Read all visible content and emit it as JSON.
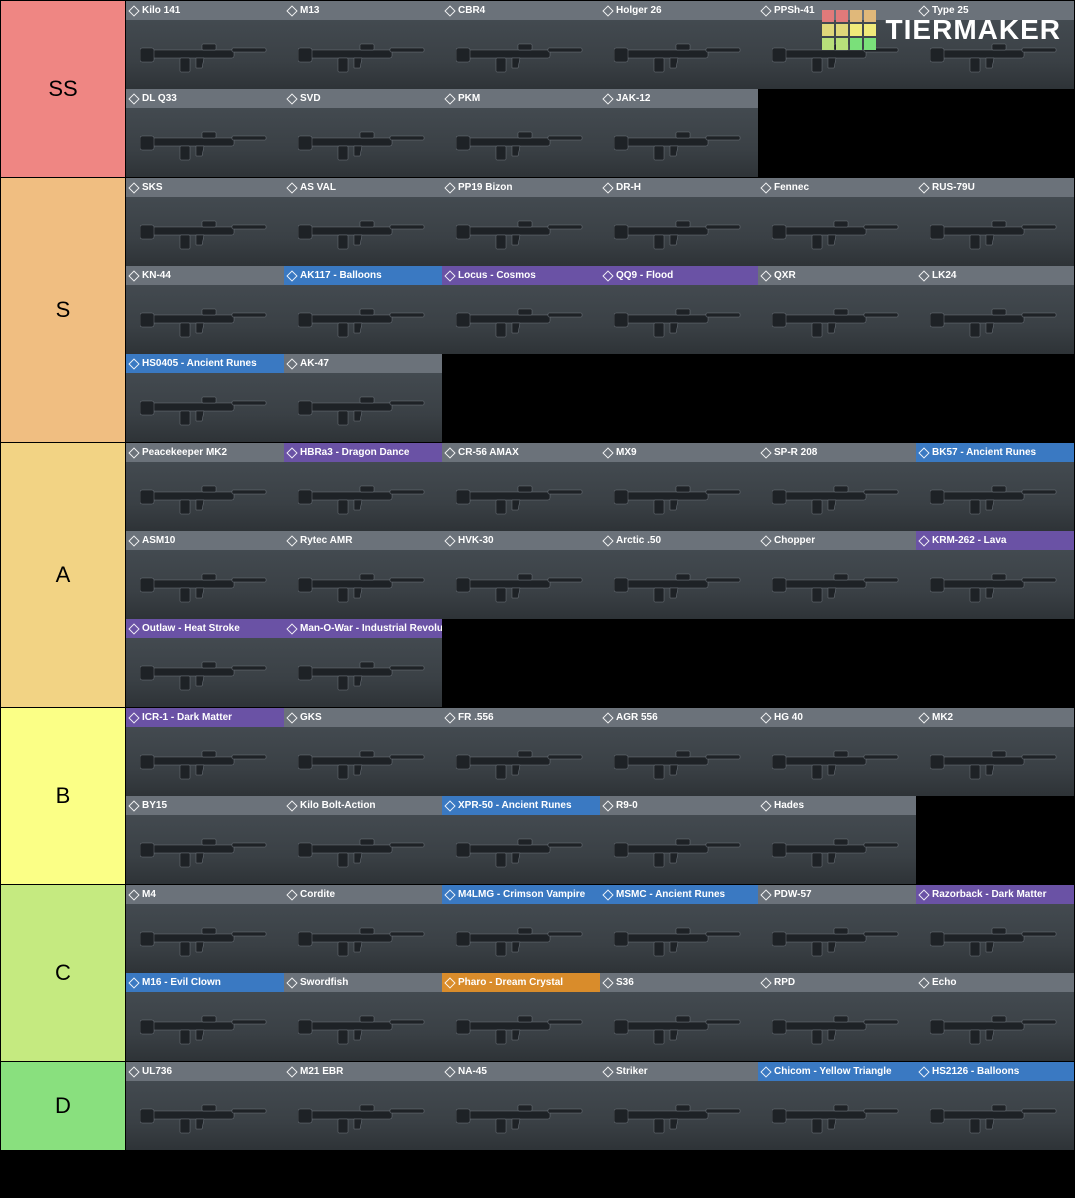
{
  "watermark": {
    "text": "TIERMAKER",
    "text_color": "#ffffff",
    "grid_colors": [
      "#e07a7a",
      "#e07a7a",
      "#e0b87a",
      "#e0b87a",
      "#e0d77a",
      "#e0d77a",
      "#f0ea7a",
      "#f0ea7a",
      "#b8e07a",
      "#b8e07a",
      "#7ae07a",
      "#7ae07a"
    ]
  },
  "rarity_colors": {
    "default": "#6b727a",
    "blue": "#3a79c2",
    "purple": "#6a52a5",
    "orange": "#d98c2b"
  },
  "item_body_gradient": [
    "#434a50",
    "#3a4045",
    "#2e3337"
  ],
  "tier_label_fontsize": 22,
  "item_header_fontsize": 10,
  "item_width": 158,
  "item_height": 88,
  "label_width": 125,
  "weapon_silhouette_color": "#1e2226",
  "weapon_highlight_color": "#808891",
  "tiers": [
    {
      "key": "ss",
      "label": "SS",
      "color": "#ef8683",
      "items": [
        {
          "name": "Kilo 141",
          "rarity": "default"
        },
        {
          "name": "M13",
          "rarity": "default"
        },
        {
          "name": "CBR4",
          "rarity": "default"
        },
        {
          "name": "Holger 26",
          "rarity": "default"
        },
        {
          "name": "PPSh-41",
          "rarity": "default"
        },
        {
          "name": "Type 25",
          "rarity": "default"
        },
        {
          "name": "DL Q33",
          "rarity": "default"
        },
        {
          "name": "SVD",
          "rarity": "default"
        },
        {
          "name": "PKM",
          "rarity": "default"
        },
        {
          "name": "JAK-12",
          "rarity": "default"
        }
      ]
    },
    {
      "key": "s",
      "label": "S",
      "color": "#f0be81",
      "items": [
        {
          "name": "SKS",
          "rarity": "default"
        },
        {
          "name": "AS VAL",
          "rarity": "default"
        },
        {
          "name": "PP19 Bizon",
          "rarity": "default"
        },
        {
          "name": "DR-H",
          "rarity": "default"
        },
        {
          "name": "Fennec",
          "rarity": "default"
        },
        {
          "name": "RUS-79U",
          "rarity": "default"
        },
        {
          "name": "KN-44",
          "rarity": "default"
        },
        {
          "name": "AK117 - Balloons",
          "rarity": "blue"
        },
        {
          "name": "Locus - Cosmos",
          "rarity": "purple"
        },
        {
          "name": "QQ9 - Flood",
          "rarity": "purple"
        },
        {
          "name": "QXR",
          "rarity": "default"
        },
        {
          "name": "LK24",
          "rarity": "default"
        },
        {
          "name": "HS0405 - Ancient Runes",
          "rarity": "blue"
        },
        {
          "name": "AK-47",
          "rarity": "default"
        }
      ]
    },
    {
      "key": "a",
      "label": "A",
      "color": "#f2d384",
      "items": [
        {
          "name": "Peacekeeper MK2",
          "rarity": "default"
        },
        {
          "name": "HBRa3 - Dragon Dance",
          "rarity": "purple"
        },
        {
          "name": "CR-56 AMAX",
          "rarity": "default"
        },
        {
          "name": "MX9",
          "rarity": "default"
        },
        {
          "name": "SP-R 208",
          "rarity": "default"
        },
        {
          "name": "BK57 - Ancient Runes",
          "rarity": "blue"
        },
        {
          "name": "ASM10",
          "rarity": "default"
        },
        {
          "name": "Rytec AMR",
          "rarity": "default"
        },
        {
          "name": "HVK-30",
          "rarity": "default"
        },
        {
          "name": "Arctic .50",
          "rarity": "default"
        },
        {
          "name": "Chopper",
          "rarity": "default"
        },
        {
          "name": "KRM-262 - Lava",
          "rarity": "purple"
        },
        {
          "name": "Outlaw - Heat Stroke",
          "rarity": "purple"
        },
        {
          "name": "Man-O-War - Industrial Revolution",
          "rarity": "purple"
        }
      ]
    },
    {
      "key": "b",
      "label": "B",
      "color": "#fbff86",
      "items": [
        {
          "name": "ICR-1 - Dark Matter",
          "rarity": "purple"
        },
        {
          "name": "GKS",
          "rarity": "default"
        },
        {
          "name": "FR .556",
          "rarity": "default"
        },
        {
          "name": "AGR 556",
          "rarity": "default"
        },
        {
          "name": "HG 40",
          "rarity": "default"
        },
        {
          "name": "MK2",
          "rarity": "default"
        },
        {
          "name": "BY15",
          "rarity": "default"
        },
        {
          "name": "Kilo Bolt-Action",
          "rarity": "default"
        },
        {
          "name": "XPR-50 - Ancient Runes",
          "rarity": "blue"
        },
        {
          "name": "R9-0",
          "rarity": "default"
        },
        {
          "name": "Hades",
          "rarity": "default"
        }
      ]
    },
    {
      "key": "c",
      "label": "C",
      "color": "#c5ea80",
      "items": [
        {
          "name": "M4",
          "rarity": "default"
        },
        {
          "name": "Cordite",
          "rarity": "default"
        },
        {
          "name": "M4LMG - Crimson Vampire",
          "rarity": "blue"
        },
        {
          "name": "MSMC - Ancient Runes",
          "rarity": "blue"
        },
        {
          "name": "PDW-57",
          "rarity": "default"
        },
        {
          "name": "Razorback - Dark Matter",
          "rarity": "purple"
        },
        {
          "name": "M16 - Evil Clown",
          "rarity": "blue"
        },
        {
          "name": "Swordfish",
          "rarity": "default"
        },
        {
          "name": "Pharo - Dream Crystal",
          "rarity": "orange"
        },
        {
          "name": "S36",
          "rarity": "default"
        },
        {
          "name": "RPD",
          "rarity": "default"
        },
        {
          "name": "Echo",
          "rarity": "default"
        }
      ]
    },
    {
      "key": "d",
      "label": "D",
      "color": "#89e07e",
      "items": [
        {
          "name": "UL736",
          "rarity": "default"
        },
        {
          "name": "M21 EBR",
          "rarity": "default"
        },
        {
          "name": "NA-45",
          "rarity": "default"
        },
        {
          "name": "Striker",
          "rarity": "default"
        },
        {
          "name": "Chicom - Yellow Triangle",
          "rarity": "blue"
        },
        {
          "name": "HS2126 - Balloons",
          "rarity": "blue"
        }
      ]
    }
  ]
}
